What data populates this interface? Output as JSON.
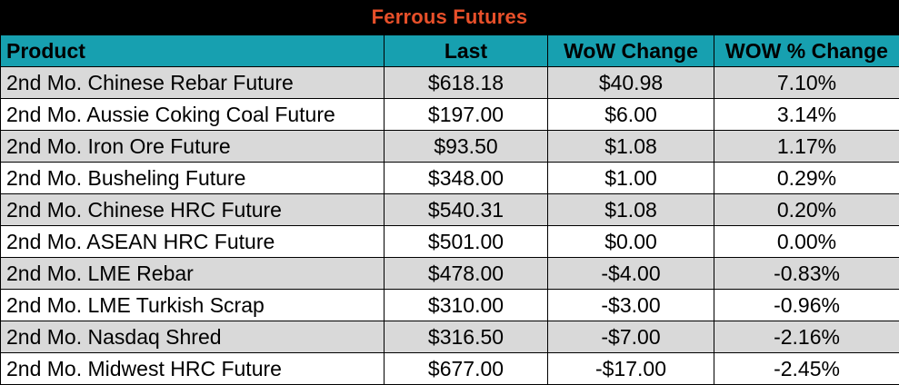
{
  "title": "Ferrous Futures",
  "colors": {
    "title_bg": "#000000",
    "title_text": "#e8502a",
    "header_bg": "#17a0b0",
    "row_shade": "#d9d9d9",
    "row_plain": "#ffffff"
  },
  "columns": {
    "product": "Product",
    "last": "Last",
    "wow_change": "WoW Change",
    "wow_pct_change": "WOW % Change"
  },
  "rows": [
    {
      "product": "2nd Mo. Chinese Rebar Future",
      "last": "$618.18",
      "wow_change": "$40.98",
      "wow_pct_change": "7.10%"
    },
    {
      "product": "2nd Mo. Aussie Coking Coal Future",
      "last": "$197.00",
      "wow_change": "$6.00",
      "wow_pct_change": "3.14%"
    },
    {
      "product": "2nd Mo. Iron Ore Future",
      "last": "$93.50",
      "wow_change": "$1.08",
      "wow_pct_change": "1.17%"
    },
    {
      "product": "2nd Mo. Busheling Future",
      "last": "$348.00",
      "wow_change": "$1.00",
      "wow_pct_change": "0.29%"
    },
    {
      "product": "2nd Mo. Chinese HRC Future",
      "last": "$540.31",
      "wow_change": "$1.08",
      "wow_pct_change": "0.20%"
    },
    {
      "product": "2nd Mo. ASEAN HRC Future",
      "last": "$501.00",
      "wow_change": "$0.00",
      "wow_pct_change": "0.00%"
    },
    {
      "product": "2nd Mo. LME Rebar",
      "last": "$478.00",
      "wow_change": "-$4.00",
      "wow_pct_change": "-0.83%"
    },
    {
      "product": "2nd Mo. LME Turkish Scrap",
      "last": "$310.00",
      "wow_change": "-$3.00",
      "wow_pct_change": "-0.96%"
    },
    {
      "product": "2nd Mo. Nasdaq Shred",
      "last": "$316.50",
      "wow_change": "-$7.00",
      "wow_pct_change": "-2.16%"
    },
    {
      "product": "2nd Mo. Midwest HRC Future",
      "last": "$677.00",
      "wow_change": "-$17.00",
      "wow_pct_change": "-2.45%"
    }
  ]
}
